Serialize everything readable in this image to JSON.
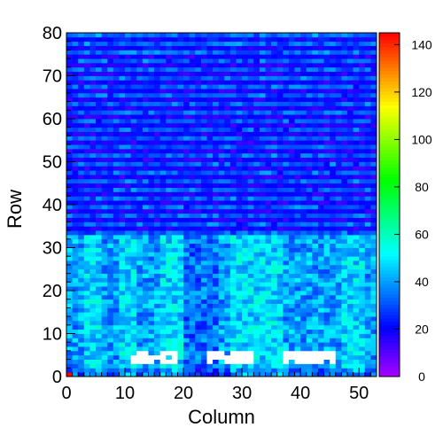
{
  "chart_data": {
    "type": "heatmap",
    "title": "",
    "xlabel": "Column",
    "ylabel": "Row",
    "xlim": [
      0,
      53
    ],
    "ylim": [
      0,
      80
    ],
    "x_ticks": [
      0,
      10,
      20,
      30,
      40,
      50
    ],
    "y_ticks": [
      0,
      10,
      20,
      30,
      40,
      50,
      60,
      70,
      80
    ],
    "colorbar": {
      "range": [
        0,
        145
      ],
      "ticks": [
        0,
        20,
        40,
        60,
        80,
        100,
        120,
        140
      ],
      "palette": "rainbow (violet to red)"
    },
    "grid": false,
    "regions": [
      {
        "rows": [
          0,
          33
        ],
        "typical_value": 35,
        "range": [
          15,
          60
        ],
        "note": "Lower half: mostly cyan/blue, brighter blocks around columns 3-5, 9-11, 16-19, 28-36, 47-50"
      },
      {
        "rows": [
          33,
          80
        ],
        "typical_value": 20,
        "range": [
          5,
          45
        ],
        "note": "Upper half: blue/violet with horizontal stripes of higher values on alternating rows"
      },
      {
        "rows": [
          3,
          6
        ],
        "columns": [
          [
            10.5,
            19
          ],
          [
            23.5,
            31.5
          ],
          [
            36.5,
            45.5
          ]
        ],
        "value": 0,
        "note": "Clusters of empty (zero, white) bins"
      }
    ],
    "max_cell": {
      "column": 0,
      "row": 0,
      "value": 145
    }
  }
}
